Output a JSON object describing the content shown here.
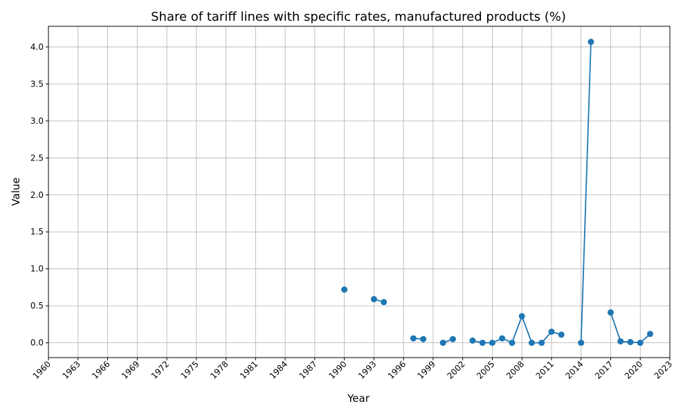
{
  "chart_data": {
    "type": "line",
    "title": "Share of tariff lines with specific rates, manufactured products (%)",
    "xlabel": "Year",
    "ylabel": "Value",
    "xlim": [
      1960,
      2023
    ],
    "ylim": [
      -0.2,
      4.28
    ],
    "x_ticks": [
      "1960",
      "1963",
      "1966",
      "1969",
      "1972",
      "1975",
      "1978",
      "1981",
      "1984",
      "1987",
      "1990",
      "1993",
      "1996",
      "1999",
      "2002",
      "2005",
      "2008",
      "2011",
      "2014",
      "2017",
      "2020",
      "2023"
    ],
    "y_ticks": [
      "0.0",
      "0.5",
      "1.0",
      "1.5",
      "2.0",
      "2.5",
      "3.0",
      "3.5",
      "4.0"
    ],
    "grid": true,
    "color": "#1f77b4",
    "series": [
      {
        "points": [
          [
            1990,
            0.72
          ],
          [
            1993,
            0.59
          ],
          [
            1994,
            0.55
          ],
          [
            1997,
            0.06
          ],
          [
            1998,
            0.05
          ],
          [
            2000,
            0.0
          ],
          [
            2001,
            0.05
          ],
          [
            2003,
            0.03
          ],
          [
            2004,
            0.0
          ],
          [
            2005,
            0.0
          ],
          [
            2006,
            0.06
          ],
          [
            2007,
            0.0
          ],
          [
            2008,
            0.36
          ],
          [
            2009,
            0.0
          ],
          [
            2010,
            0.0
          ],
          [
            2011,
            0.15
          ],
          [
            2012,
            0.11
          ],
          [
            2014,
            0.0
          ],
          [
            2015,
            4.07
          ],
          [
            2017,
            0.41
          ],
          [
            2018,
            0.02
          ],
          [
            2019,
            0.01
          ],
          [
            2020,
            0.0
          ],
          [
            2021,
            0.12
          ]
        ]
      }
    ]
  }
}
